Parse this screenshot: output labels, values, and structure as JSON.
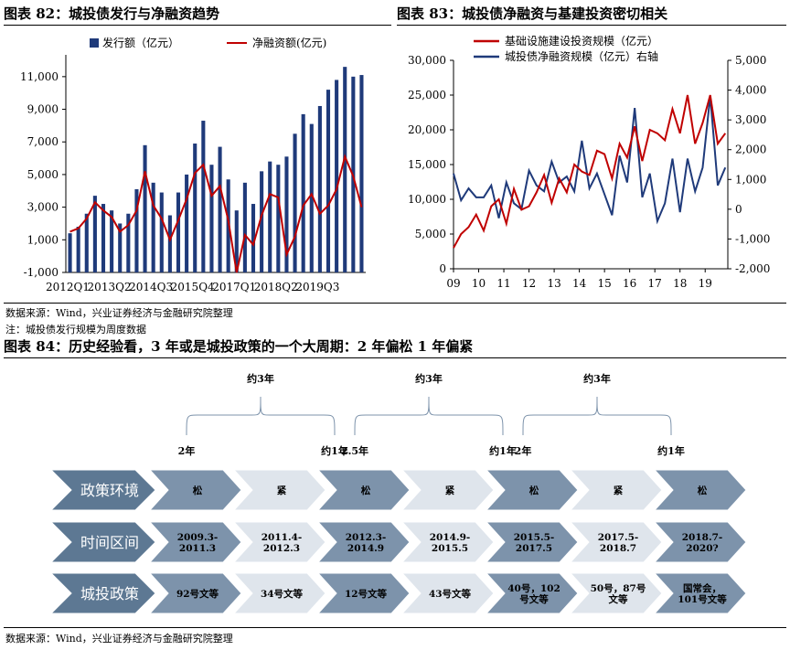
{
  "chart82": {
    "title": "图表 82：城投债发行与净融资趋势",
    "legend": {
      "bar": "发行额（亿元）",
      "line": "净融资额(亿元)"
    },
    "colors": {
      "bar": "#1f3a7a",
      "line": "#c00000"
    }
  },
  "chart83": {
    "title": "图表 83：城投债净融资与基建投资密切相关",
    "legend": {
      "a": "基础设施建设投资规模（亿元）",
      "b": "城投债净融资规模（亿元）右轴"
    },
    "colors": {
      "a": "#c00000",
      "b": "#1f3a7a"
    }
  },
  "chart84": {
    "title": "图表 84：历史经验看，3 年或是城投政策的一个大周期：2 年偏松 1 年偏紧",
    "row_labels": [
      "政策环境",
      "时间区间",
      "城投政策"
    ],
    "policy": [
      "松",
      "紧",
      "松",
      "紧",
      "松",
      "紧",
      "松"
    ],
    "periods": [
      "2009.3-\n2011.3",
      "2011.4-\n2012.3",
      "2012.3-\n2014.9",
      "2014.9-\n2015.5",
      "2015.5-\n2017.5",
      "2017.5-\n2018.7",
      "2018.7-\n2020?"
    ],
    "documents": [
      "92号文等",
      "34号文等",
      "12号文等",
      "43号文等",
      "40号，102\n号文等",
      "50号，87号\n文等",
      "国常会，\n101号文等"
    ],
    "cycles": [
      {
        "top": "约3年",
        "left": "2年",
        "right": "约1年"
      },
      {
        "top": "约3年",
        "left": "2.5年",
        "right": "约1年"
      },
      {
        "top": "约3年",
        "left": "2年",
        "right": "约1年"
      }
    ],
    "colors": {
      "row_label": "#5d7893",
      "dark_arrow": "#7d93ab",
      "light_arrow": "#dfe5ec"
    }
  },
  "source1": "数据来源：Wind，兴业证券经济与金融研究院整理",
  "note1": "注：城投债发行规模为周度数据",
  "source2": "数据来源：Wind，兴业证券经济与金融研究院整理",
  "chart_data": [
    {
      "type": "bar",
      "title": "图表 82：城投债发行与净融资趋势",
      "xlabel": "",
      "ylabel": "",
      "ylim": [
        -1000,
        12000
      ],
      "yticks": [
        -1000,
        1000,
        3000,
        5000,
        7000,
        9000,
        11000
      ],
      "x_tick_labels": [
        "2012Q1",
        "2013Q2",
        "2014Q3",
        "2015Q4",
        "2017Q1",
        "2018Q2",
        "2019Q3"
      ],
      "categories": [
        "2012Q1",
        "2012Q2",
        "2012Q3",
        "2012Q4",
        "2013Q1",
        "2013Q2",
        "2013Q3",
        "2013Q4",
        "2014Q1",
        "2014Q2",
        "2014Q3",
        "2014Q4",
        "2015Q1",
        "2015Q2",
        "2015Q3",
        "2015Q4",
        "2016Q1",
        "2016Q2",
        "2016Q3",
        "2016Q4",
        "2017Q1",
        "2017Q2",
        "2017Q3",
        "2017Q4",
        "2018Q1",
        "2018Q2",
        "2018Q3",
        "2018Q4",
        "2019Q1",
        "2019Q2",
        "2019Q3",
        "2019Q4",
        "2020Q1",
        "2020Q2",
        "2020Q3",
        "2020Q4"
      ],
      "series": [
        {
          "name": "发行额（亿元）",
          "type": "bar",
          "values": [
            1400,
            1800,
            2600,
            3700,
            3200,
            2800,
            2000,
            2600,
            4100,
            6800,
            4500,
            3900,
            2500,
            3900,
            5000,
            6900,
            8300,
            5600,
            6700,
            4700,
            2800,
            4500,
            3200,
            5200,
            5800,
            5600,
            6100,
            7500,
            8700,
            8100,
            9200,
            10200,
            10800,
            11600,
            11000,
            11100
          ]
        },
        {
          "name": "净融资额(亿元)",
          "type": "line",
          "values": [
            1500,
            1700,
            2300,
            3300,
            2800,
            2400,
            1500,
            1900,
            2800,
            5200,
            3100,
            2300,
            1000,
            2200,
            3500,
            5100,
            5600,
            3700,
            4300,
            2200,
            -1000,
            1300,
            700,
            2500,
            3800,
            3600,
            100,
            1200,
            3100,
            3800,
            2600,
            3100,
            4100,
            6100,
            4900,
            3000
          ]
        }
      ]
    },
    {
      "type": "line",
      "title": "图表 83：城投债净融资与基建投资密切相关",
      "xlabel": "",
      "ylabel": "",
      "x_tick_labels": [
        "09",
        "10",
        "11",
        "12",
        "13",
        "14",
        "15",
        "16",
        "17",
        "18",
        "19"
      ],
      "x_range": [
        2009.0,
        2019.9
      ],
      "ylim": [
        0,
        30000
      ],
      "y2lim": [
        -2000,
        5000
      ],
      "yticks": [
        0,
        5000,
        10000,
        15000,
        20000,
        25000,
        30000
      ],
      "y2ticks": [
        -2000,
        -1000,
        0,
        1000,
        2000,
        3000,
        4000,
        5000
      ],
      "series": [
        {
          "name": "基础设施建设投资规模（亿元）",
          "axis": "left",
          "x": [
            2009.0,
            2009.3,
            2009.6,
            2009.9,
            2010.2,
            2010.5,
            2010.8,
            2011.1,
            2011.4,
            2011.7,
            2012.0,
            2012.3,
            2012.6,
            2012.9,
            2013.2,
            2013.5,
            2013.8,
            2014.1,
            2014.4,
            2014.7,
            2015.0,
            2015.3,
            2015.6,
            2015.9,
            2016.2,
            2016.5,
            2016.8,
            2017.1,
            2017.4,
            2017.7,
            2018.0,
            2018.3,
            2018.6,
            2018.9,
            2019.2,
            2019.5,
            2019.8
          ],
          "values": [
            3000,
            5000,
            6000,
            7800,
            5500,
            9000,
            10000,
            6500,
            11500,
            8500,
            9000,
            11000,
            13500,
            9500,
            13000,
            11000,
            15000,
            14000,
            13500,
            17000,
            16500,
            13000,
            18000,
            16000,
            20500,
            15500,
            20000,
            19500,
            18500,
            23000,
            19500,
            25000,
            18000,
            21000,
            25000,
            18000,
            19500
          ]
        },
        {
          "name": "城投债净融资规模（亿元）右轴",
          "axis": "right",
          "x": [
            2009.0,
            2009.3,
            2009.6,
            2009.9,
            2010.2,
            2010.5,
            2010.8,
            2011.1,
            2011.4,
            2011.7,
            2012.0,
            2012.3,
            2012.6,
            2012.9,
            2013.2,
            2013.5,
            2013.8,
            2014.1,
            2014.4,
            2014.7,
            2015.0,
            2015.3,
            2015.6,
            2015.9,
            2016.2,
            2016.5,
            2016.8,
            2017.1,
            2017.4,
            2017.7,
            2018.0,
            2018.3,
            2018.6,
            2018.9,
            2019.2,
            2019.5,
            2019.8
          ],
          "values": [
            1200,
            300,
            700,
            400,
            400,
            800,
            -300,
            900,
            200,
            0,
            1300,
            800,
            600,
            1600,
            900,
            1100,
            600,
            2300,
            700,
            1200,
            500,
            -200,
            1800,
            900,
            3400,
            400,
            1200,
            -400,
            200,
            1700,
            -100,
            1700,
            600,
            1400,
            3800,
            800,
            1400
          ]
        }
      ]
    }
  ]
}
